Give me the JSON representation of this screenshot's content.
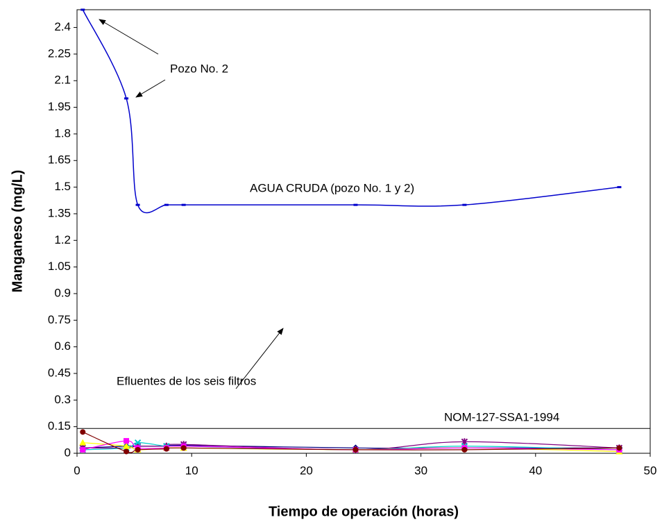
{
  "chart_data": {
    "type": "line",
    "xlabel": "Tiempo de operación (horas)",
    "ylabel": "Manganeso (mg/L)",
    "xlim": [
      0,
      50
    ],
    "xticks": [
      0,
      10,
      20,
      30,
      40,
      50
    ],
    "ylim": [
      0,
      2.5
    ],
    "yticks": [
      0,
      0.15,
      0.3,
      0.45,
      0.6,
      0.75,
      0.9,
      1.05,
      1.2,
      1.35,
      1.5,
      1.65,
      1.8,
      1.95,
      2.1,
      2.25,
      2.4
    ],
    "x": [
      0.5,
      4.3,
      5.3,
      7.8,
      9.3,
      24.3,
      33.8,
      47.3
    ],
    "series": [
      {
        "color": "#0000cc",
        "marker": "dash",
        "values": [
          2.5,
          2.0,
          1.4,
          1.4,
          1.4,
          1.4,
          1.4,
          1.5
        ]
      },
      {
        "color": "#800000",
        "marker": "circle",
        "values": [
          0.12,
          0.01,
          0.02,
          0.025,
          0.03,
          0.02,
          0.02,
          0.03
        ]
      },
      {
        "color": "#ff00ff",
        "marker": "square",
        "values": [
          0.02,
          0.07,
          0.03,
          0.03,
          0.04,
          0.02,
          0.03,
          0.02
        ]
      },
      {
        "color": "#ffff00",
        "marker": "triangle",
        "values": [
          0.06,
          0.04,
          0.02,
          0.03,
          0.03,
          0.02,
          0.03,
          0.01
        ]
      },
      {
        "color": "#00cccc",
        "marker": "x",
        "values": [
          0.02,
          0.03,
          0.06,
          0.04,
          0.04,
          0.02,
          0.04,
          0.02
        ]
      },
      {
        "color": "#800080",
        "marker": "star",
        "values": [
          0.03,
          0.03,
          0.04,
          0.04,
          0.05,
          0.02,
          0.065,
          0.03
        ]
      },
      {
        "color": "#000080",
        "marker": "diamond",
        "values": [
          0.03,
          0.04,
          0.04,
          0.04,
          0.045,
          0.03,
          0.03,
          0.03
        ]
      }
    ],
    "hlines": [
      {
        "value": 0.14,
        "label": "NOM-127-SSA1-1994"
      }
    ],
    "annotations": [
      "Pozo No. 2",
      "AGUA CRUDA (pozo No. 1 y 2)",
      "Efluentes de los seis filtros"
    ]
  }
}
